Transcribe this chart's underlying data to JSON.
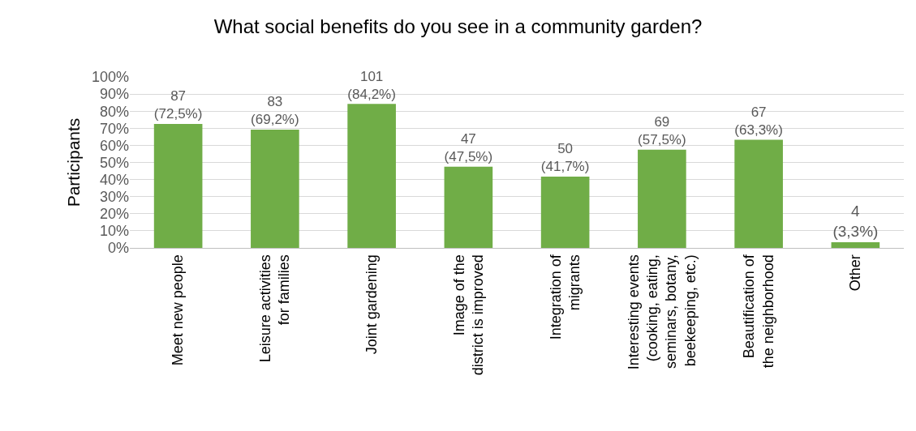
{
  "chart_data": {
    "type": "bar",
    "title": "What social benefits do you see in a community garden?",
    "ylabel": "Participants",
    "categories": [
      "Meet new people",
      "Leisure activities\nfor families",
      "Joint gardening",
      "Image of the\ndistrict is improved",
      "Integration of\nmigrants",
      "Interesting events\n(cooking, eating,\nseminars, botany,\nbeekeeping, etc.)",
      "Beautification of\nthe neighborhood",
      "Other"
    ],
    "values": [
      72.5,
      69.2,
      84.2,
      47.5,
      41.7,
      57.5,
      63.3,
      3.3
    ],
    "value_labels": [
      "87\n(72,5%)",
      "83\n(69,2%)",
      "101\n(84,2%)",
      "47\n(47,5%)",
      "50\n(41,7%)",
      "69\n(57,5%)",
      "67\n(63,3%)",
      "4\n(3,3%)"
    ],
    "color": "#70ad47",
    "ylim": [
      0,
      100
    ],
    "yticks": [
      {
        "value": 0,
        "label": "0%"
      },
      {
        "value": 10,
        "label": "10%"
      },
      {
        "value": 20,
        "label": "20%"
      },
      {
        "value": 30,
        "label": "30%"
      },
      {
        "value": 40,
        "label": "40%"
      },
      {
        "value": 50,
        "label": "50%"
      },
      {
        "value": 60,
        "label": "60%"
      },
      {
        "value": 70,
        "label": "70%"
      },
      {
        "value": 80,
        "label": "80%"
      },
      {
        "value": 90,
        "label": "90%"
      },
      {
        "value": 100,
        "label": "100%"
      }
    ],
    "grid": "y"
  }
}
